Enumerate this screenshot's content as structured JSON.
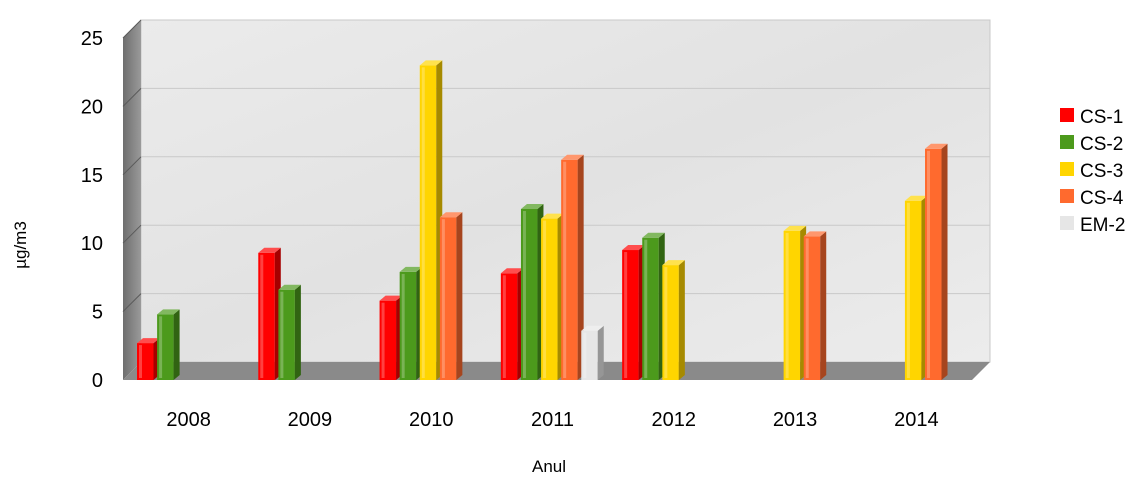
{
  "chart_data": {
    "type": "bar",
    "title": "",
    "xlabel": "Anul",
    "ylabel": "µg/m3",
    "categories": [
      "2008",
      "2009",
      "2010",
      "2011",
      "2012",
      "2013",
      "2014"
    ],
    "ylim": [
      0,
      25
    ],
    "yticks": [
      "0",
      "5",
      "10",
      "15",
      "20",
      "25"
    ],
    "grid": true,
    "legend_position": "right",
    "series": [
      {
        "name": "CS-1",
        "color": "#ff0000",
        "values": [
          2.7,
          9.3,
          5.8,
          7.8,
          9.5,
          null,
          null
        ]
      },
      {
        "name": "CS-2",
        "color": "#4c9a1c",
        "values": [
          4.8,
          6.6,
          7.9,
          12.5,
          10.4,
          null,
          null
        ]
      },
      {
        "name": "CS-3",
        "color": "#ffd500",
        "values": [
          null,
          null,
          23.0,
          11.8,
          8.4,
          10.9,
          13.1
        ]
      },
      {
        "name": "CS-4",
        "color": "#ff6a2e",
        "values": [
          null,
          null,
          11.9,
          16.1,
          null,
          10.5,
          16.9
        ]
      },
      {
        "name": "EM-2",
        "color": "#e6e6e6",
        "values": [
          null,
          null,
          null,
          3.6,
          null,
          null,
          null
        ]
      }
    ]
  }
}
